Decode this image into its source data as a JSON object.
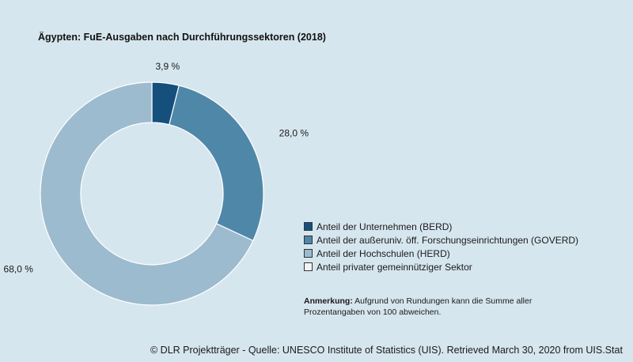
{
  "chart_data": {
    "type": "pie",
    "title": "Ägypten: FuE-Ausgaben nach Durchführungssektoren (2018)",
    "categories": [
      "Anteil der Unternehmen (BERD)",
      "Anteil der außeruniv. öff. Forschungseinrichtungen (GOVERD)",
      "Anteil der Hochschulen (HERD)",
      "Anteil privater gemeinnütziger Sektor"
    ],
    "values": [
      3.9,
      28.0,
      68.0,
      0
    ],
    "value_labels": [
      "3,9 %",
      "28,0 %",
      "68,0 %",
      ""
    ],
    "colors": [
      "#154f7c",
      "#4f87a9",
      "#9dbbcf",
      "#f3f3f3"
    ],
    "donut": true,
    "legend_placement": "right"
  },
  "note": {
    "label": "Anmerkung:",
    "text": " Aufgrund von Rundungen kann die Summe aller Prozentangaben von 100 abweichen."
  },
  "footer": "© DLR Projektträger - Quelle: UNESCO Institute of Statistics (UIS). Retrieved March 30, 2020 from UIS.Stat"
}
